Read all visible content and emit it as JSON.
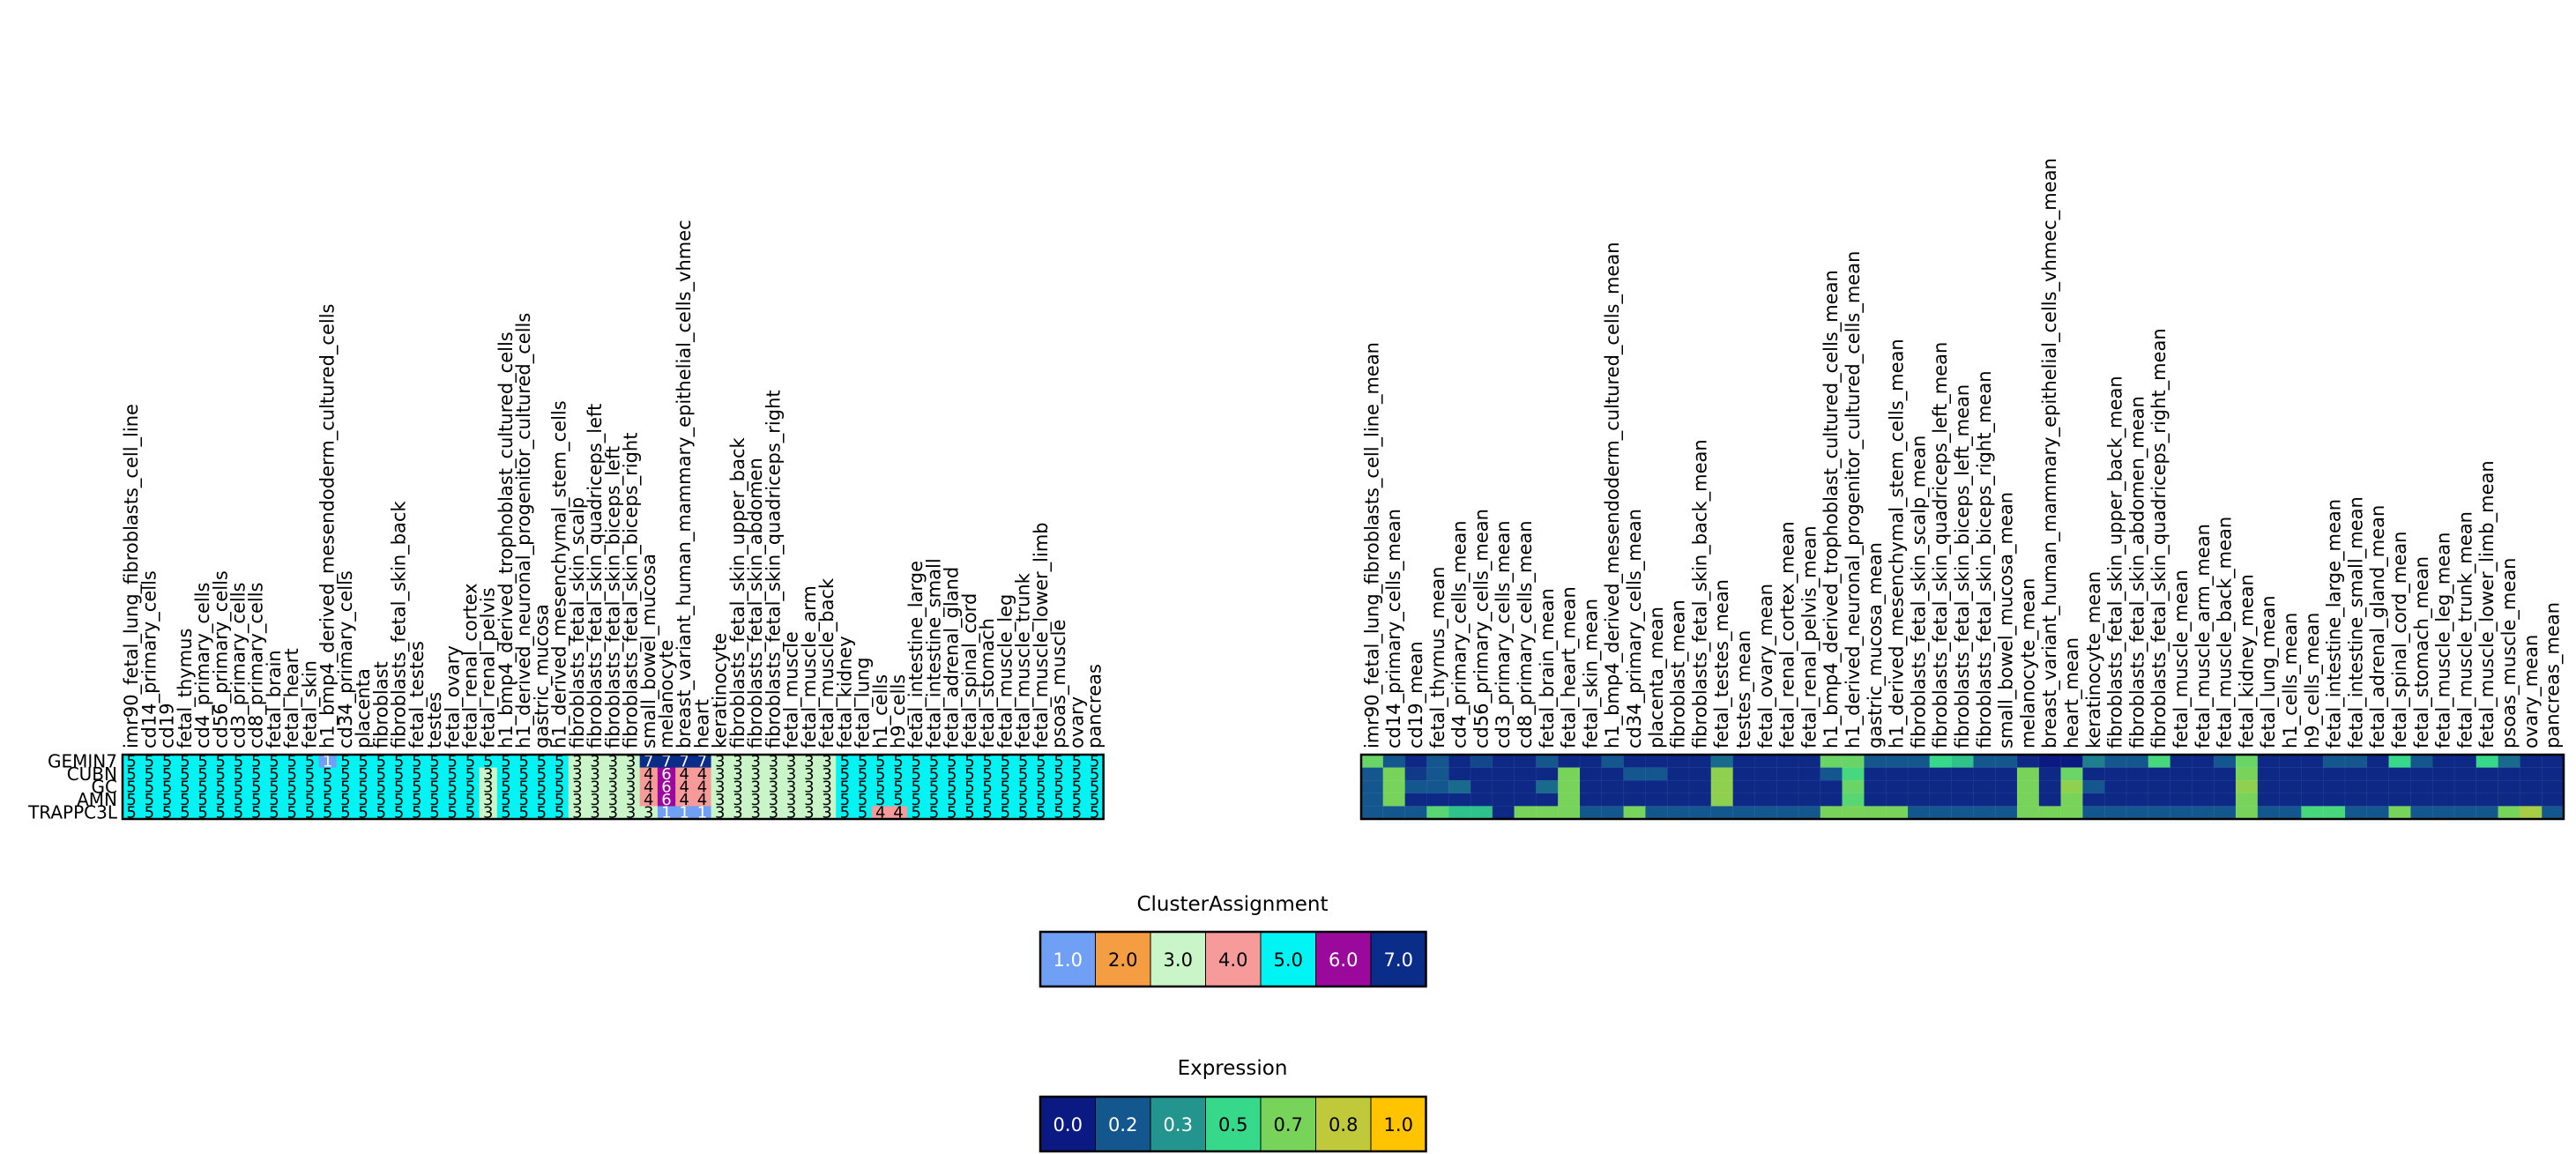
{
  "chart_data": [
    {
      "type": "heatmap",
      "name": "cluster-assignment-heatmap",
      "rows": [
        "GEMIN7",
        "CUBN",
        "GC",
        "AMN",
        "TRAPPC3L"
      ],
      "columns": [
        "imr90_fetal_lung_fibroblasts_cell_line",
        "cd14_primary_cells",
        "cd19",
        "fetal_thymus",
        "cd4_primary_cells",
        "cd56_primary_cells",
        "cd3_primary_cells",
        "cd8_primary_cells",
        "fetal_brain",
        "fetal_heart",
        "fetal_skin",
        "h1_bmp4_derived_mesendoderm_cultured_cells",
        "cd34_primary_cells",
        "placenta",
        "fibroblast",
        "fibroblasts_fetal_skin_back",
        "fetal_testes",
        "testes",
        "fetal_ovary",
        "fetal_renal_cortex",
        "fetal_renal_pelvis",
        "h1_bmp4_derived_trophoblast_cultured_cells",
        "h1_derived_neuronal_progenitor_cultured_cells",
        "gastric_mucosa",
        "h1_derived_mesenchymal_stem_cells",
        "fibroblasts_fetal_skin_scalp",
        "fibroblasts_fetal_skin_quadriceps_left",
        "fibroblasts_fetal_skin_biceps_left",
        "fibroblasts_fetal_skin_biceps_right",
        "small_bowel_mucosa",
        "melanocyte",
        "breast_variant_human_mammary_epithelial_cells_vhmec",
        "heart",
        "keratinocyte",
        "fibroblasts_fetal_skin_upper_back",
        "fibroblasts_fetal_skin_abdomen",
        "fibroblasts_fetal_skin_quadriceps_right",
        "fetal_muscle",
        "fetal_muscle_arm",
        "fetal_muscle_back",
        "fetal_kidney",
        "fetal_lung",
        "h1_cells",
        "h9_cells",
        "fetal_intestine_large",
        "fetal_intestine_small",
        "fetal_adrenal_gland",
        "fetal_spinal_cord",
        "fetal_stomach",
        "fetal_muscle_leg",
        "fetal_muscle_trunk",
        "fetal_muscle_lower_limb",
        "psoas_muscle",
        "ovary",
        "pancreas"
      ],
      "values": [
        [
          5,
          5,
          5,
          5,
          5,
          5,
          5,
          5,
          5,
          5,
          5,
          1,
          5,
          5,
          5,
          5,
          5,
          5,
          5,
          5,
          5,
          5,
          5,
          5,
          5,
          3,
          3,
          3,
          3,
          7,
          7,
          7,
          7,
          3,
          3,
          3,
          3,
          3,
          3,
          3,
          5,
          5,
          5,
          5,
          5,
          5,
          5,
          5,
          5,
          5,
          5,
          5,
          5,
          5,
          5
        ],
        [
          5,
          5,
          5,
          5,
          5,
          5,
          5,
          5,
          5,
          5,
          5,
          5,
          5,
          5,
          5,
          5,
          5,
          5,
          5,
          5,
          3,
          5,
          5,
          5,
          5,
          3,
          3,
          3,
          3,
          4,
          6,
          4,
          4,
          3,
          3,
          3,
          3,
          3,
          3,
          3,
          5,
          5,
          5,
          5,
          5,
          5,
          5,
          5,
          5,
          5,
          5,
          5,
          5,
          5,
          5
        ],
        [
          5,
          5,
          5,
          5,
          5,
          5,
          5,
          5,
          5,
          5,
          5,
          5,
          5,
          5,
          5,
          5,
          5,
          5,
          5,
          5,
          3,
          5,
          5,
          5,
          5,
          3,
          3,
          3,
          3,
          4,
          6,
          4,
          4,
          3,
          3,
          3,
          3,
          3,
          3,
          3,
          5,
          5,
          5,
          5,
          5,
          5,
          5,
          5,
          5,
          5,
          5,
          5,
          5,
          5,
          5
        ],
        [
          5,
          5,
          5,
          5,
          5,
          5,
          5,
          5,
          5,
          5,
          5,
          5,
          5,
          5,
          5,
          5,
          5,
          5,
          5,
          5,
          3,
          5,
          5,
          5,
          5,
          3,
          3,
          3,
          3,
          4,
          6,
          4,
          4,
          3,
          3,
          3,
          3,
          3,
          3,
          3,
          5,
          5,
          5,
          5,
          5,
          5,
          5,
          5,
          5,
          5,
          5,
          5,
          5,
          5,
          5
        ],
        [
          5,
          5,
          5,
          5,
          5,
          5,
          5,
          5,
          5,
          5,
          5,
          5,
          5,
          5,
          5,
          5,
          5,
          5,
          5,
          5,
          3,
          5,
          5,
          5,
          5,
          3,
          3,
          3,
          3,
          3,
          1,
          1,
          1,
          3,
          3,
          3,
          3,
          3,
          3,
          3,
          5,
          5,
          4,
          4,
          5,
          5,
          5,
          5,
          5,
          5,
          5,
          5,
          5,
          5,
          5
        ]
      ],
      "colormap": {
        "1": "#6fa0f5",
        "2": "#f59d42",
        "3": "#caf5c8",
        "4": "#f79a9a",
        "5": "#00f4f4",
        "6": "#9b089c",
        "7": "#0a2d8a"
      },
      "cell_text_light": [
        "1",
        "6",
        "7"
      ]
    },
    {
      "type": "heatmap",
      "name": "expression-heatmap",
      "rows": [
        "GEMIN7",
        "CUBN",
        "GC",
        "AMN",
        "TRAPPC3L"
      ],
      "columns": [
        "imr90_fetal_lung_fibroblasts_cell_line_mean",
        "cd14_primary_cells_mean",
        "cd19_mean",
        "fetal_thymus_mean",
        "cd4_primary_cells_mean",
        "cd56_primary_cells_mean",
        "cd3_primary_cells_mean",
        "cd8_primary_cells_mean",
        "fetal_brain_mean",
        "fetal_heart_mean",
        "fetal_skin_mean",
        "h1_bmp4_derived_mesendoderm_cultured_cells_mean",
        "cd34_primary_cells_mean",
        "placenta_mean",
        "fibroblast_mean",
        "fibroblasts_fetal_skin_back_mean",
        "fetal_testes_mean",
        "testes_mean",
        "fetal_ovary_mean",
        "fetal_renal_cortex_mean",
        "fetal_renal_pelvis_mean",
        "h1_bmp4_derived_trophoblast_cultured_cells_mean",
        "h1_derived_neuronal_progenitor_cultured_cells_mean",
        "gastric_mucosa_mean",
        "h1_derived_mesenchymal_stem_cells_mean",
        "fibroblasts_fetal_skin_scalp_mean",
        "fibroblasts_fetal_skin_quadriceps_left_mean",
        "fibroblasts_fetal_skin_biceps_left_mean",
        "fibroblasts_fetal_skin_biceps_right_mean",
        "small_bowel_mucosa_mean",
        "melanocyte_mean",
        "breast_variant_human_mammary_epithelial_cells_vhmec_mean",
        "heart_mean",
        "keratinocyte_mean",
        "fibroblasts_fetal_skin_upper_back_mean",
        "fibroblasts_fetal_skin_abdomen_mean",
        "fibroblasts_fetal_skin_quadriceps_right_mean",
        "fetal_muscle_mean",
        "fetal_muscle_arm_mean",
        "fetal_muscle_back_mean",
        "fetal_kidney_mean",
        "fetal_lung_mean",
        "h1_cells_mean",
        "h9_cells_mean",
        "fetal_intestine_large_mean",
        "fetal_intestine_small_mean",
        "fetal_adrenal_gland_mean",
        "fetal_spinal_cord_mean",
        "fetal_stomach_mean",
        "fetal_muscle_leg_mean",
        "fetal_muscle_trunk_mean",
        "fetal_muscle_lower_limb_mean",
        "psoas_muscle_mean",
        "ovary_mean",
        "pancreas_mean"
      ],
      "values": [
        [
          0.65,
          0.2,
          0.05,
          0.2,
          0.05,
          0.15,
          0.05,
          0.05,
          0.2,
          0.05,
          0.05,
          0.2,
          0.05,
          0.05,
          0.05,
          0.05,
          0.25,
          0.05,
          0.05,
          0.05,
          0.05,
          0.65,
          0.65,
          0.2,
          0.2,
          0.2,
          0.5,
          0.45,
          0.2,
          0.2,
          0.05,
          0.0,
          0.0,
          0.3,
          0.2,
          0.2,
          0.55,
          0.05,
          0.05,
          0.2,
          0.65,
          0.05,
          0.05,
          0.05,
          0.2,
          0.2,
          0.05,
          0.5,
          0.2,
          0.05,
          0.05,
          0.5,
          0.25,
          0.05,
          0.05
        ],
        [
          0.2,
          0.7,
          0.1,
          0.2,
          0.05,
          0.05,
          0.05,
          0.05,
          0.05,
          0.7,
          0.05,
          0.05,
          0.2,
          0.2,
          0.05,
          0.05,
          0.75,
          0.05,
          0.05,
          0.05,
          0.05,
          0.2,
          0.55,
          0.05,
          0.05,
          0.05,
          0.05,
          0.05,
          0.05,
          0.05,
          0.7,
          0.05,
          0.65,
          0.05,
          0.05,
          0.05,
          0.05,
          0.05,
          0.05,
          0.05,
          0.7,
          0.05,
          0.05,
          0.05,
          0.05,
          0.05,
          0.05,
          0.05,
          0.05,
          0.05,
          0.05,
          0.05,
          0.05,
          0.05,
          0.05
        ],
        [
          0.2,
          0.7,
          0.2,
          0.2,
          0.25,
          0.05,
          0.05,
          0.05,
          0.25,
          0.7,
          0.05,
          0.05,
          0.05,
          0.05,
          0.05,
          0.05,
          0.75,
          0.05,
          0.05,
          0.05,
          0.05,
          0.05,
          0.65,
          0.05,
          0.05,
          0.05,
          0.05,
          0.05,
          0.05,
          0.05,
          0.7,
          0.05,
          0.75,
          0.2,
          0.05,
          0.05,
          0.05,
          0.05,
          0.05,
          0.05,
          0.75,
          0.05,
          0.05,
          0.05,
          0.05,
          0.05,
          0.05,
          0.05,
          0.05,
          0.05,
          0.05,
          0.05,
          0.05,
          0.05,
          0.05
        ],
        [
          0.2,
          0.7,
          0.05,
          0.05,
          0.05,
          0.05,
          0.05,
          0.05,
          0.05,
          0.7,
          0.05,
          0.05,
          0.05,
          0.05,
          0.05,
          0.05,
          0.75,
          0.05,
          0.05,
          0.05,
          0.05,
          0.05,
          0.6,
          0.05,
          0.05,
          0.05,
          0.05,
          0.05,
          0.05,
          0.05,
          0.7,
          0.05,
          0.7,
          0.05,
          0.05,
          0.05,
          0.05,
          0.05,
          0.05,
          0.05,
          0.7,
          0.05,
          0.05,
          0.05,
          0.05,
          0.05,
          0.05,
          0.05,
          0.05,
          0.05,
          0.05,
          0.05,
          0.05,
          0.05,
          0.05
        ],
        [
          0.2,
          0.2,
          0.2,
          0.6,
          0.45,
          0.45,
          0.05,
          0.7,
          0.7,
          0.7,
          0.2,
          0.2,
          0.7,
          0.2,
          0.2,
          0.2,
          0.2,
          0.2,
          0.2,
          0.2,
          0.2,
          0.7,
          0.7,
          0.7,
          0.7,
          0.2,
          0.2,
          0.2,
          0.2,
          0.2,
          0.7,
          0.7,
          0.7,
          0.2,
          0.2,
          0.2,
          0.2,
          0.2,
          0.2,
          0.2,
          0.7,
          0.2,
          0.2,
          0.55,
          0.55,
          0.2,
          0.2,
          0.7,
          0.2,
          0.2,
          0.2,
          0.2,
          0.7,
          0.8,
          0.2
        ]
      ],
      "vmin": 0.0,
      "vmax": 1.0
    }
  ],
  "legends": {
    "cluster": {
      "title": "ClusterAssignment",
      "items": [
        {
          "label": "1.0",
          "color": "#6fa0f5",
          "text_color": "#ffffff"
        },
        {
          "label": "2.0",
          "color": "#f59d42",
          "text_color": "#000000"
        },
        {
          "label": "3.0",
          "color": "#caf5c8",
          "text_color": "#000000"
        },
        {
          "label": "4.0",
          "color": "#f79a9a",
          "text_color": "#000000"
        },
        {
          "label": "5.0",
          "color": "#00f4f4",
          "text_color": "#000000"
        },
        {
          "label": "6.0",
          "color": "#9b089c",
          "text_color": "#ffffff"
        },
        {
          "label": "7.0",
          "color": "#0a2d8a",
          "text_color": "#ffffff"
        }
      ]
    },
    "expression": {
      "title": "Expression",
      "items": [
        {
          "label": "0.0",
          "color": "#0b1a82",
          "text_color": "#ffffff"
        },
        {
          "label": "0.2",
          "color": "#14578e",
          "text_color": "#ffffff"
        },
        {
          "label": "0.3",
          "color": "#23948e",
          "text_color": "#ffffff"
        },
        {
          "label": "0.5",
          "color": "#36d98a",
          "text_color": "#000000"
        },
        {
          "label": "0.7",
          "color": "#78d35a",
          "text_color": "#000000"
        },
        {
          "label": "0.8",
          "color": "#bfc93a",
          "text_color": "#000000"
        },
        {
          "label": "1.0",
          "color": "#ffc300",
          "text_color": "#000000"
        }
      ]
    }
  }
}
